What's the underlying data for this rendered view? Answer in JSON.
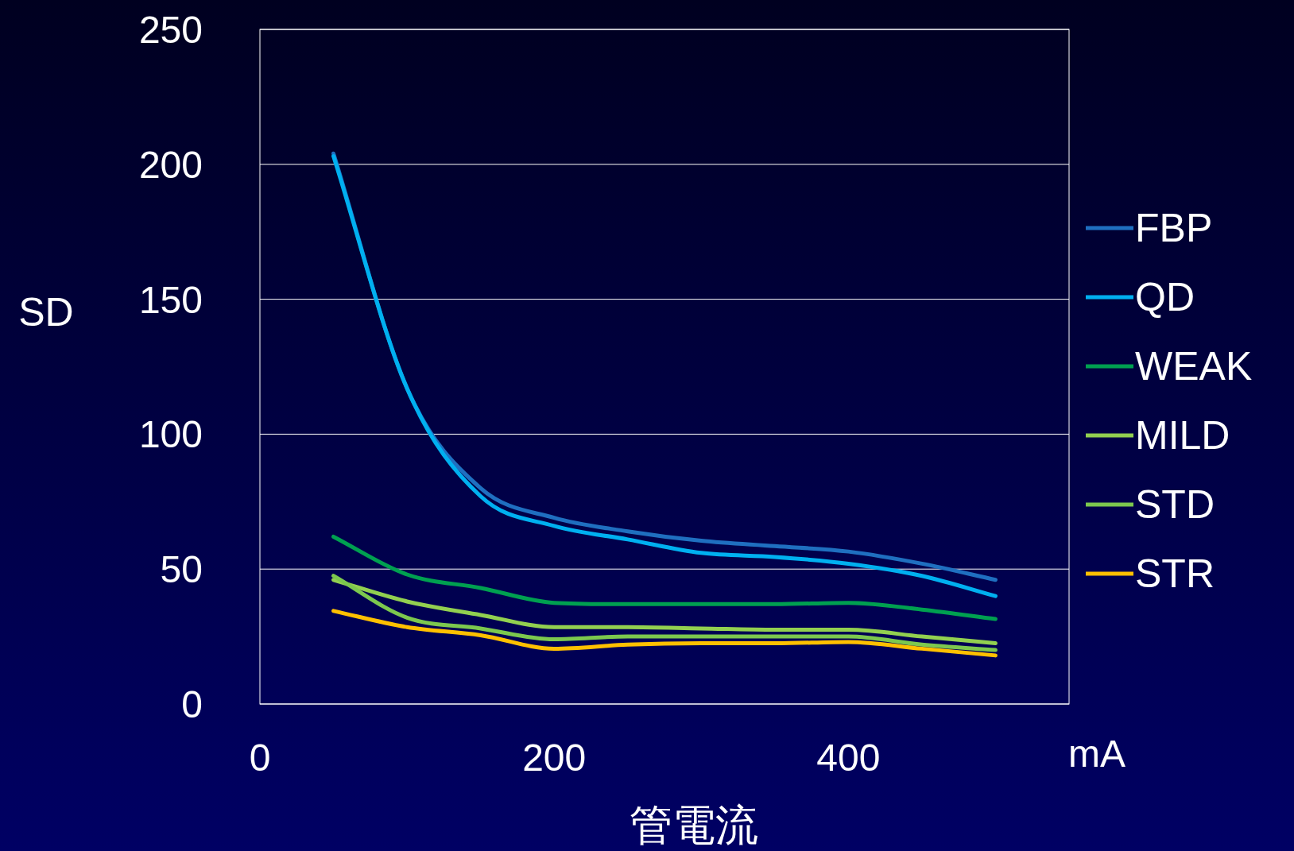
{
  "chart_data": {
    "type": "line",
    "xlabel": "管電流",
    "ylabel": "SD",
    "annotations": [
      "mA"
    ],
    "x": [
      50,
      100,
      150,
      200,
      250,
      300,
      350,
      400,
      450,
      500
    ],
    "xlim": [
      0,
      550
    ],
    "xticks": [
      0,
      200,
      400
    ],
    "ylim": [
      0,
      250
    ],
    "yticks": [
      0,
      50,
      100,
      150,
      200,
      250
    ],
    "grid": "y",
    "legend": "right",
    "series": [
      {
        "name": "FBP",
        "color": "#1f6fc0",
        "values": [
          204,
          117,
          80,
          69,
          64,
          60.5,
          58.5,
          56.5,
          52,
          46
        ]
      },
      {
        "name": "QD",
        "color": "#00b0f0",
        "values": [
          203,
          117,
          77,
          66,
          61,
          56,
          54.5,
          52,
          47.5,
          40
        ]
      },
      {
        "name": "WEAK",
        "color": "#00a050",
        "values": [
          62,
          48,
          43,
          37.5,
          37,
          37,
          37,
          37.5,
          35,
          31.5
        ]
      },
      {
        "name": "MILD",
        "color": "#92d050",
        "values": [
          46,
          38,
          33,
          28.5,
          28.5,
          28,
          27.5,
          27.5,
          25,
          22.5
        ]
      },
      {
        "name": "STD",
        "color": "#7cc84e",
        "values": [
          47.5,
          32,
          28,
          24,
          25,
          25,
          25,
          25,
          22,
          20
        ]
      },
      {
        "name": "STR",
        "color": "#ffc000",
        "values": [
          34.5,
          28.5,
          25.5,
          20.5,
          22,
          22.5,
          22.5,
          23,
          20.5,
          18
        ]
      }
    ]
  }
}
